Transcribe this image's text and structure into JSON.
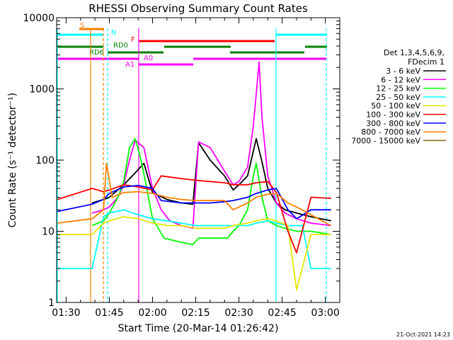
{
  "chart_data": {
    "type": "line",
    "title": "RHESSI Observing Summary Count Rates",
    "xlabel": "Start Time (20-Mar-14 01:26:42)",
    "ylabel": "Count Rate (s⁻¹ detector⁻¹)",
    "yscale": "log",
    "ylim": [
      1,
      10000
    ],
    "xlim": [
      "01:26:42",
      "03:05:00"
    ],
    "x_ticks": [
      "01:30",
      "01:45",
      "02:00",
      "02:15",
      "02:30",
      "02:45",
      "03:00"
    ],
    "y_ticks": [
      "1",
      "10",
      "100",
      "1000",
      "10000"
    ],
    "footer": "21-Oct-2021 14:23",
    "legend": {
      "header_lines": [
        "Det 1,3,4,5,6,9,",
        "FDecim 1"
      ],
      "position": "right-outside"
    },
    "series": [
      {
        "name": "3 - 6 keV",
        "color": "#000000",
        "t": [
          "01:39",
          "01:43",
          "01:45",
          "01:50",
          "01:53",
          "01:57",
          "02:00",
          "02:05",
          "02:10",
          "02:14",
          "02:16",
          "02:20",
          "02:25",
          "02:28",
          "02:30",
          "02:33",
          "02:36",
          "02:38",
          "02:40",
          "02:43",
          "02:46",
          "02:50",
          "02:55",
          "03:02"
        ],
        "v": [
          25,
          28,
          30,
          45,
          60,
          90,
          35,
          28,
          25,
          24,
          175,
          100,
          60,
          38,
          45,
          60,
          200,
          95,
          40,
          25,
          20,
          18,
          16,
          14
        ]
      },
      {
        "name": "6 - 12 keV",
        "color": "#ff00ff",
        "t": [
          "01:39",
          "01:43",
          "01:45",
          "01:48",
          "01:50",
          "01:52",
          "01:54",
          "01:57",
          "02:00",
          "02:03",
          "02:06",
          "02:10",
          "02:14",
          "02:16",
          "02:20",
          "02:25",
          "02:28",
          "02:30",
          "02:33",
          "02:35",
          "02:37",
          "02:38",
          "02:40",
          "02:43",
          "02:46",
          "02:50",
          "02:55",
          "03:02"
        ],
        "v": [
          18,
          20,
          22,
          30,
          45,
          100,
          190,
          150,
          40,
          20,
          14,
          12,
          11,
          180,
          150,
          70,
          45,
          50,
          80,
          300,
          2400,
          400,
          60,
          25,
          18,
          15,
          13,
          12
        ]
      },
      {
        "name": "12 - 25 keV",
        "color": "#00ff00",
        "t": [
          "01:39",
          "01:43",
          "01:45",
          "01:48",
          "01:50",
          "01:52",
          "01:54",
          "01:56",
          "01:58",
          "02:00",
          "02:04",
          "02:10",
          "02:14",
          "02:16",
          "02:20",
          "02:26",
          "02:28",
          "02:30",
          "02:33",
          "02:35",
          "02:36",
          "02:38",
          "02:40",
          "02:43",
          "02:46",
          "02:50",
          "02:55",
          "03:02"
        ],
        "v": [
          12,
          14,
          18,
          30,
          50,
          150,
          200,
          100,
          40,
          15,
          8,
          7,
          6.5,
          8,
          8,
          8,
          10,
          12,
          20,
          60,
          90,
          30,
          14,
          12,
          11,
          10,
          10,
          9
        ]
      },
      {
        "name": "25 - 50 keV",
        "color": "#00ffff",
        "t": [
          "01:27",
          "01:39",
          "01:43",
          "01:45",
          "01:50",
          "01:55",
          "02:00",
          "02:05",
          "02:10",
          "02:15",
          "02:20",
          "02:25",
          "02:28",
          "02:33",
          "02:36",
          "02:40",
          "02:43",
          "02:47",
          "02:52",
          "02:55",
          "03:02"
        ],
        "v": [
          3,
          3,
          16,
          18,
          20,
          17,
          15,
          14,
          13,
          12,
          12,
          12,
          12,
          12,
          13,
          14,
          13,
          12,
          12,
          3,
          3
        ]
      },
      {
        "name": "50 - 100 keV",
        "color": "#e5e500",
        "t": [
          "01:27",
          "01:39",
          "01:43",
          "01:45",
          "01:50",
          "01:55",
          "02:00",
          "02:05",
          "02:10",
          "02:15",
          "02:20",
          "02:25",
          "02:28",
          "02:33",
          "02:36",
          "02:40",
          "02:43",
          "02:47",
          "02:50",
          "02:55",
          "03:02"
        ],
        "v": [
          9,
          9,
          13,
          14,
          16,
          15,
          13,
          12,
          12,
          11,
          11,
          11,
          12,
          13,
          14,
          15,
          14,
          12,
          1.5,
          9,
          9
        ]
      },
      {
        "name": "100 - 300 keV",
        "color": "#ff0000",
        "t": [
          "01:27",
          "01:39",
          "01:43",
          "01:45",
          "01:50",
          "01:55",
          "02:00",
          "02:03",
          "02:10",
          "02:15",
          "02:20",
          "02:25",
          "02:28",
          "02:33",
          "02:36",
          "02:40",
          "02:43",
          "02:47",
          "02:50",
          "02:55",
          "03:02"
        ],
        "v": [
          28,
          40,
          36,
          38,
          45,
          42,
          38,
          60,
          55,
          52,
          50,
          48,
          45,
          45,
          48,
          50,
          35,
          10,
          5,
          30,
          29
        ]
      },
      {
        "name": "300 - 800 keV",
        "color": "#0000ff",
        "t": [
          "01:27",
          "01:39",
          "01:43",
          "01:45",
          "01:50",
          "01:55",
          "02:00",
          "02:03",
          "02:10",
          "02:15",
          "02:20",
          "02:25",
          "02:28",
          "02:33",
          "02:36",
          "02:40",
          "02:43",
          "02:47",
          "02:50",
          "02:55",
          "03:02"
        ],
        "v": [
          19,
          24,
          28,
          34,
          42,
          44,
          40,
          27,
          25,
          25,
          25,
          26,
          27,
          30,
          34,
          38,
          40,
          20,
          15,
          20,
          20
        ]
      },
      {
        "name": "800 - 7000 keV",
        "color": "#ff7f00",
        "t": [
          "01:27",
          "01:39",
          "01:43",
          "01:44",
          "01:46",
          "01:50",
          "01:55",
          "02:00",
          "02:05",
          "02:10",
          "02:15",
          "02:20",
          "02:25",
          "02:28",
          "02:33",
          "02:36",
          "02:40",
          "02:43",
          "02:47",
          "02:52",
          "02:55",
          "03:02"
        ],
        "v": [
          13,
          15,
          20,
          90,
          30,
          35,
          36,
          34,
          30,
          28,
          27,
          27,
          27,
          20,
          25,
          30,
          33,
          34,
          25,
          20,
          17,
          12
        ]
      },
      {
        "name": "7000 - 15000 keV",
        "color": "#8b6914",
        "t": [],
        "v": []
      }
    ],
    "flag_bars": [
      {
        "label": "S",
        "color": "#ff7f00"
      },
      {
        "label": "N",
        "color": "#00ffff"
      },
      {
        "label": "F",
        "color": "#ff0000"
      },
      {
        "label": "RD0",
        "color": "#008000"
      },
      {
        "label": "RD6",
        "color": "#008000"
      },
      {
        "label": "A0",
        "color": "#ff00ff"
      },
      {
        "label": "A1",
        "color": "#ff00ff"
      }
    ]
  }
}
